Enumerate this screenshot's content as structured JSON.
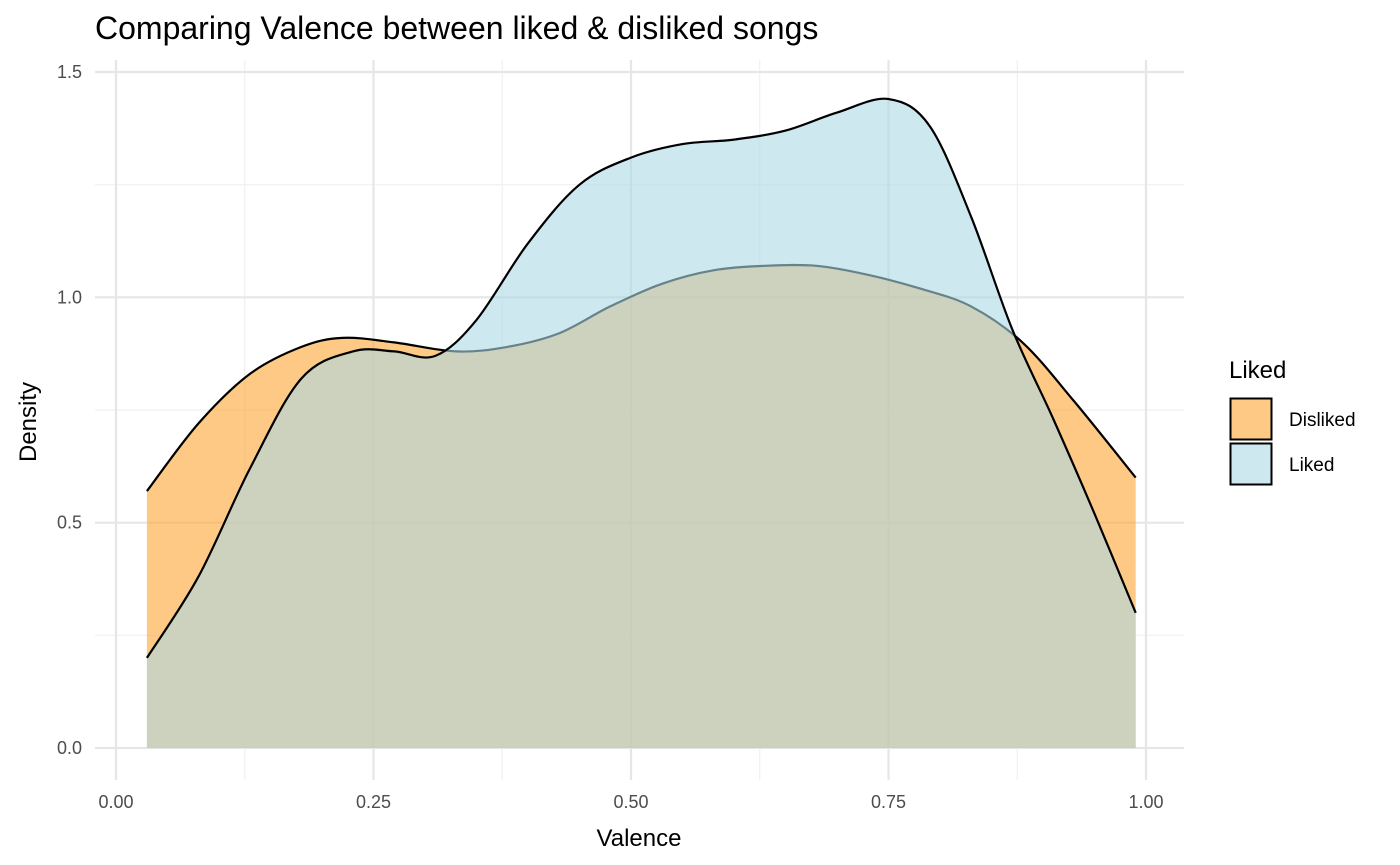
{
  "chart_data": {
    "type": "area",
    "title": "Comparing Valence between liked & disliked songs",
    "xlabel": "Valence",
    "ylabel": "Density",
    "xlim": [
      -0.02,
      1.03
    ],
    "ylim": [
      0,
      1.5
    ],
    "xticks": [
      0.0,
      0.25,
      0.5,
      0.75,
      1.0
    ],
    "xtick_labels": [
      "0.00",
      "0.25",
      "0.50",
      "0.75",
      "1.00"
    ],
    "yticks": [
      0.0,
      0.5,
      1.0,
      1.5
    ],
    "ytick_labels": [
      "0.0",
      "0.5",
      "1.0",
      "1.5"
    ],
    "grid": true,
    "legend": {
      "title": "Liked",
      "position": "right"
    },
    "series": [
      {
        "name": "Disliked",
        "color": "#FBA533",
        "opacity": 0.6,
        "x": [
          0.03,
          0.08,
          0.13,
          0.18,
          0.22,
          0.27,
          0.33,
          0.38,
          0.43,
          0.48,
          0.53,
          0.58,
          0.63,
          0.68,
          0.73,
          0.78,
          0.83,
          0.88,
          0.93,
          0.99
        ],
        "y": [
          0.57,
          0.72,
          0.83,
          0.89,
          0.91,
          0.9,
          0.88,
          0.89,
          0.92,
          0.98,
          1.03,
          1.06,
          1.07,
          1.07,
          1.05,
          1.02,
          0.98,
          0.9,
          0.77,
          0.6
        ]
      },
      {
        "name": "Liked",
        "color": "#ADD8E6",
        "opacity": 0.6,
        "x": [
          0.03,
          0.08,
          0.13,
          0.18,
          0.23,
          0.27,
          0.31,
          0.35,
          0.4,
          0.45,
          0.5,
          0.55,
          0.6,
          0.65,
          0.7,
          0.75,
          0.79,
          0.83,
          0.87,
          0.91,
          0.95,
          0.99
        ],
        "y": [
          0.2,
          0.38,
          0.62,
          0.82,
          0.88,
          0.88,
          0.87,
          0.95,
          1.12,
          1.25,
          1.31,
          1.34,
          1.35,
          1.37,
          1.41,
          1.44,
          1.38,
          1.18,
          0.93,
          0.73,
          0.52,
          0.3
        ]
      }
    ]
  }
}
